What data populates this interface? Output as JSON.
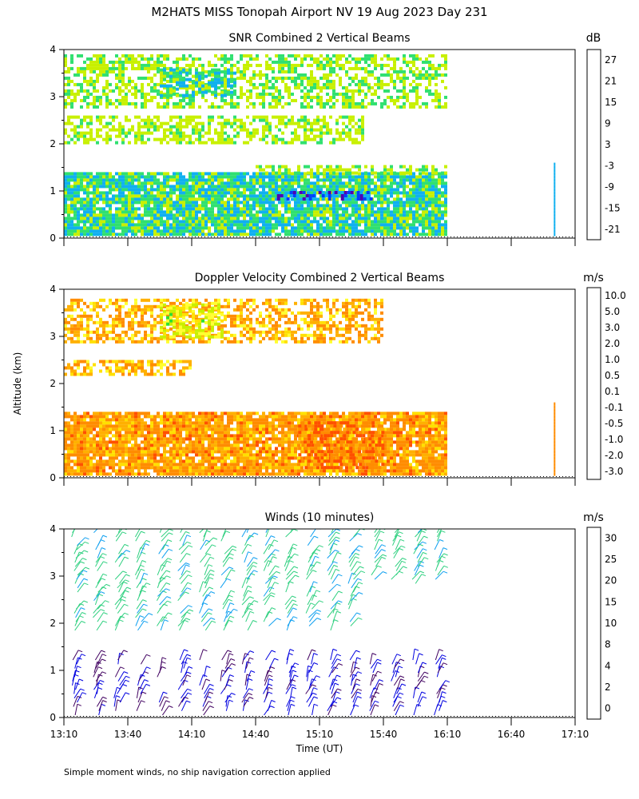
{
  "title": "M2HATS MISS Tonopah Airport NV  19 Aug 2023 Day 231",
  "ylabel": "Altitude (km)",
  "xlabel": "Time (UT)",
  "footnote": "Simple moment winds, no ship navigation correction applied",
  "chart_data": [
    {
      "type": "heatmap",
      "title": "SNR Combined 2 Vertical Beams",
      "unit": "dB",
      "xlim": [
        "13:10",
        "17:10"
      ],
      "ylim": [
        0,
        4
      ],
      "x_ticks": [
        "13:10",
        "13:40",
        "14:10",
        "14:40",
        "15:10",
        "15:40",
        "16:10",
        "16:40",
        "17:10"
      ],
      "y_ticks": [
        "0",
        "1",
        "2",
        "3",
        "4"
      ],
      "colorbar": {
        "labels": [
          "-21",
          "-15",
          "-9",
          "-3",
          "3",
          "9",
          "15",
          "21",
          "27"
        ],
        "colors": [
          "#c8f000",
          "#30e070",
          "#10b0f0",
          "#0040ff",
          "#5000b0",
          "#400060",
          "#ff2000",
          "#ff8000",
          "#ffc000"
        ]
      },
      "layers": [
        {
          "altitude_km": [
            0.1,
            1.4
          ],
          "time_range": [
            "13:10",
            "16:10"
          ],
          "snr_db": -11
        },
        {
          "altitude_km": [
            0.8,
            1.0
          ],
          "time_range": [
            "14:50",
            "15:35"
          ],
          "snr_db": 0
        },
        {
          "altitude_km": [
            1.4,
            1.55
          ],
          "time_range": [
            "14:40",
            "16:10"
          ],
          "snr_db": -18
        },
        {
          "altitude_km": [
            2.0,
            2.6
          ],
          "time_range": [
            "13:10",
            "15:30"
          ],
          "snr_db": -19
        },
        {
          "altitude_km": [
            2.8,
            3.9
          ],
          "time_range": [
            "13:10",
            "16:10"
          ],
          "snr_db": -16
        },
        {
          "altitude_km": [
            3.0,
            3.6
          ],
          "time_range": [
            "13:55",
            "14:30"
          ],
          "snr_db": -10
        }
      ]
    },
    {
      "type": "heatmap",
      "title": "Doppler Velocity Combined 2 Vertical Beams",
      "unit": "m/s",
      "xlim": [
        "13:10",
        "17:10"
      ],
      "ylim": [
        0,
        4
      ],
      "x_ticks": [
        "13:10",
        "13:40",
        "14:10",
        "14:40",
        "15:10",
        "15:40",
        "16:10",
        "16:40",
        "17:10"
      ],
      "y_ticks": [
        "0",
        "1",
        "2",
        "3",
        "4"
      ],
      "colorbar": {
        "labels": [
          "-3.0",
          "-2.0",
          "-1.0",
          "-0.5",
          "-0.1",
          "0.1",
          "0.5",
          "1.0",
          "2.0",
          "3.0",
          "5.0",
          "10.0"
        ],
        "colors": [
          "#ff0000",
          "#ff5000",
          "#ff8c00",
          "#ffb000",
          "#ffe000",
          "#ffff30",
          "#c8f000",
          "#30e030",
          "#10b0f0",
          "#0040ff",
          "#4000c0",
          "#400040"
        ]
      },
      "layers": [
        {
          "altitude_km": [
            0.1,
            1.4
          ],
          "time_range": [
            "13:10",
            "16:10"
          ],
          "velocity_ms": -0.5
        },
        {
          "altitude_km": [
            0.2,
            1.2
          ],
          "time_range": [
            "15:00",
            "15:40"
          ],
          "velocity_ms": -1.0
        },
        {
          "altitude_km": [
            2.2,
            2.5
          ],
          "time_range": [
            "13:10",
            "14:10"
          ],
          "velocity_ms": -0.3
        },
        {
          "altitude_km": [
            2.9,
            3.8
          ],
          "time_range": [
            "13:10",
            "15:40"
          ],
          "velocity_ms": -0.3
        },
        {
          "altitude_km": [
            3.0,
            3.7
          ],
          "time_range": [
            "13:55",
            "14:25"
          ],
          "velocity_ms": 0.5
        }
      ]
    },
    {
      "type": "scatter",
      "title": "Winds (10 minutes)",
      "unit": "m/s",
      "xlim": [
        "13:10",
        "17:10"
      ],
      "ylim": [
        0,
        4
      ],
      "x_ticks": [
        "13:10",
        "13:40",
        "14:10",
        "14:40",
        "15:10",
        "15:40",
        "16:10",
        "16:40",
        "17:10"
      ],
      "y_ticks": [
        "0",
        "1",
        "2",
        "3",
        "4"
      ],
      "colorbar": {
        "labels": [
          "0",
          "2",
          "4",
          "8",
          "10",
          "15",
          "20",
          "25",
          "30"
        ],
        "colors": [
          "#000000",
          "#400060",
          "#0000e0",
          "#10a0f0",
          "#30d080",
          "#80e020",
          "#ffb000",
          "#ff6000",
          "#ff0000"
        ]
      },
      "profile_times": [
        "13:15",
        "13:25",
        "13:35",
        "13:45",
        "13:55",
        "14:05",
        "14:15",
        "14:25",
        "14:35",
        "14:45",
        "14:55",
        "15:05",
        "15:15",
        "15:25",
        "15:35",
        "15:45",
        "15:55",
        "16:05"
      ],
      "low_layer": {
        "altitude_km": [
          0.0,
          1.3
        ],
        "speed_ms": [
          2,
          8
        ]
      },
      "upper_layer": {
        "altitude_km": [
          1.8,
          4.0
        ],
        "speed_ms": [
          8,
          15
        ]
      }
    }
  ]
}
